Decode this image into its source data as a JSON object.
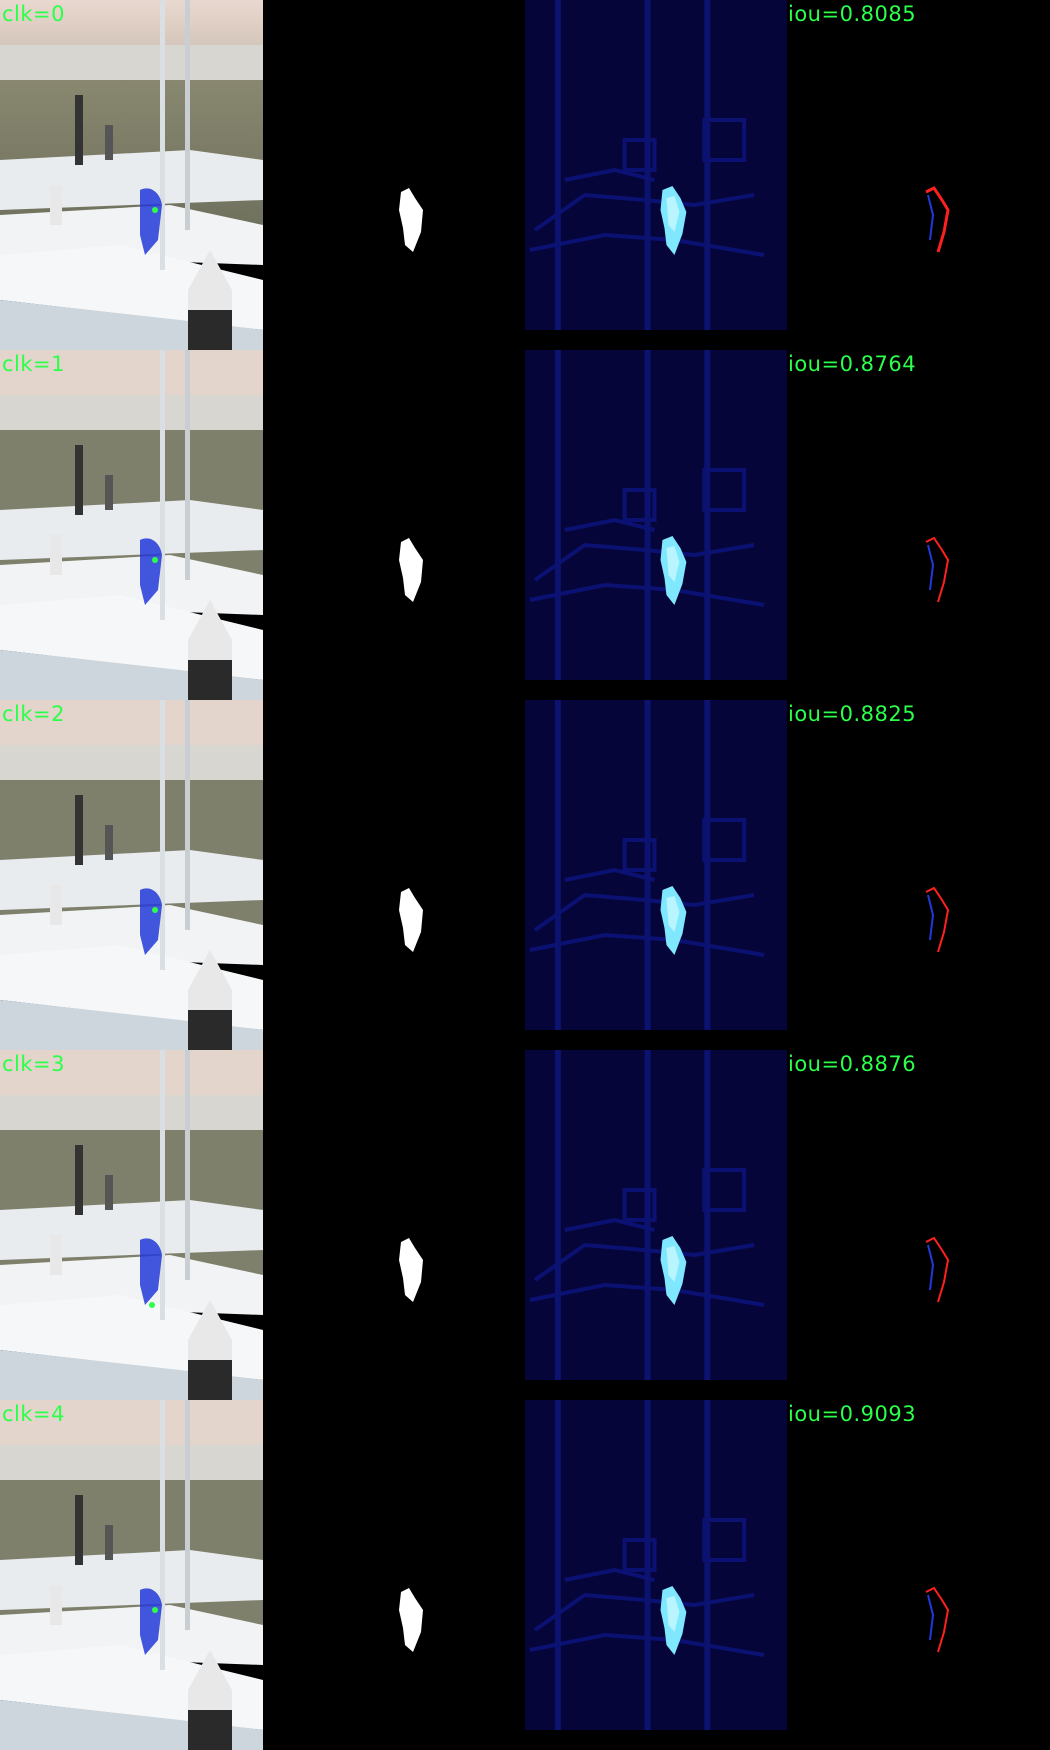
{
  "colors": {
    "label": "#2bff4a",
    "overlay": "#2238d8",
    "heat_hot": "#7fe8ff",
    "error_red": "#ff2020"
  },
  "rows": [
    {
      "click_label": "clk=0",
      "iou_label": "iou=0.8085"
    },
    {
      "click_label": "clk=1",
      "iou_label": "iou=0.8764"
    },
    {
      "click_label": "clk=2",
      "iou_label": "iou=0.8825"
    },
    {
      "click_label": "clk=3",
      "iou_label": "iou=0.8876"
    },
    {
      "click_label": "clk=4",
      "iou_label": "iou=0.9093"
    }
  ]
}
